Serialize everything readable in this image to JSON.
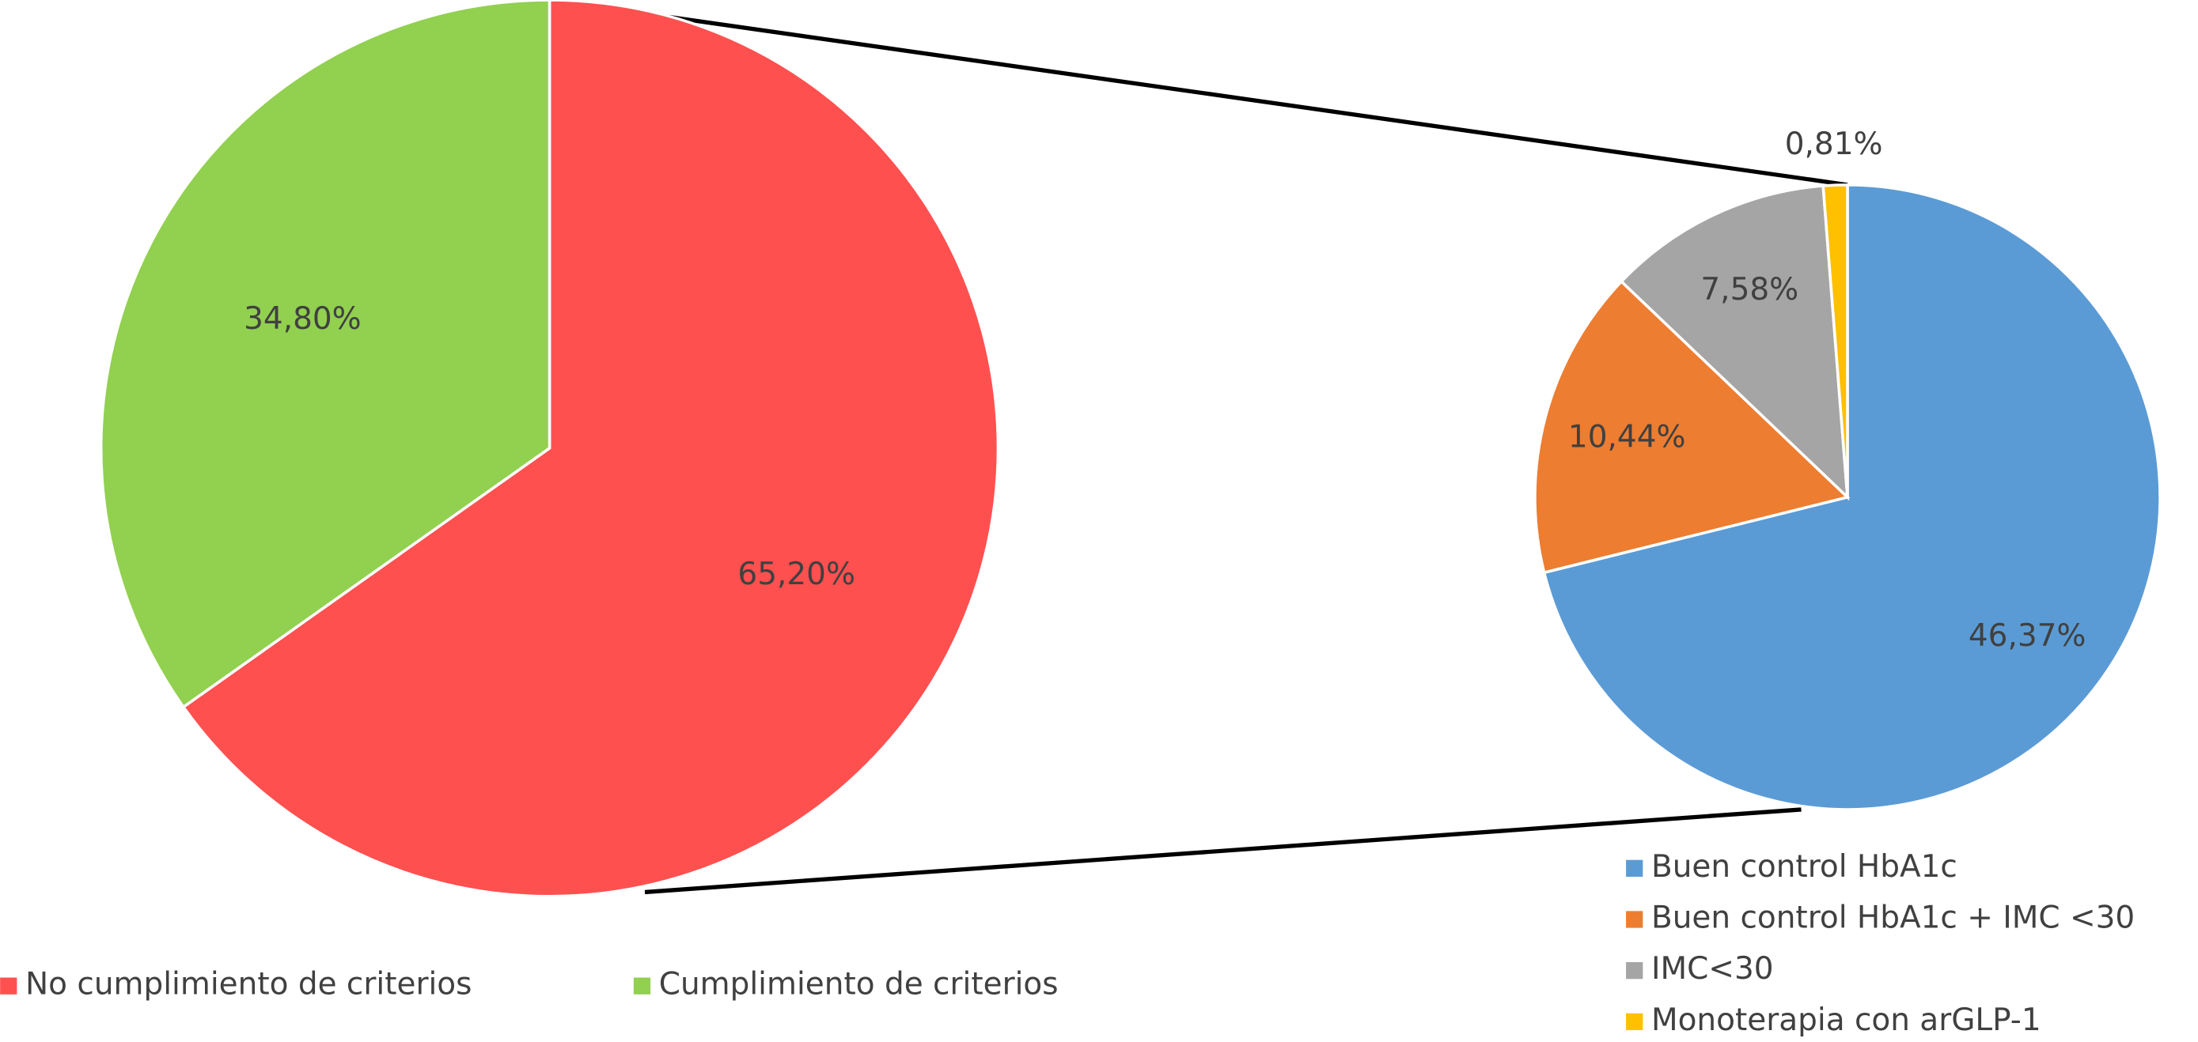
{
  "chart_data": [
    {
      "type": "pie",
      "categories": [
        "No cumplimiento de criterios",
        "Cumplimiento de criterios"
      ],
      "values": [
        65.2,
        34.8
      ],
      "value_labels": [
        "65,20%",
        "34,80%"
      ],
      "colors": [
        "#ff5050",
        "#92d050"
      ]
    },
    {
      "type": "pie",
      "categories": [
        "Buen control HbA1c",
        "Buen control HbA1c + IMC <30",
        "IMC<30",
        "Monoterapia con arGLP-1"
      ],
      "values": [
        46.37,
        10.44,
        7.58,
        0.81
      ],
      "value_labels": [
        "46,37%",
        "10,44%",
        "7,58%",
        "0,81%"
      ],
      "colors": [
        "#5b9bd5",
        "#ed7d31",
        "#a5a5a5",
        "#ffc000"
      ]
    }
  ]
}
